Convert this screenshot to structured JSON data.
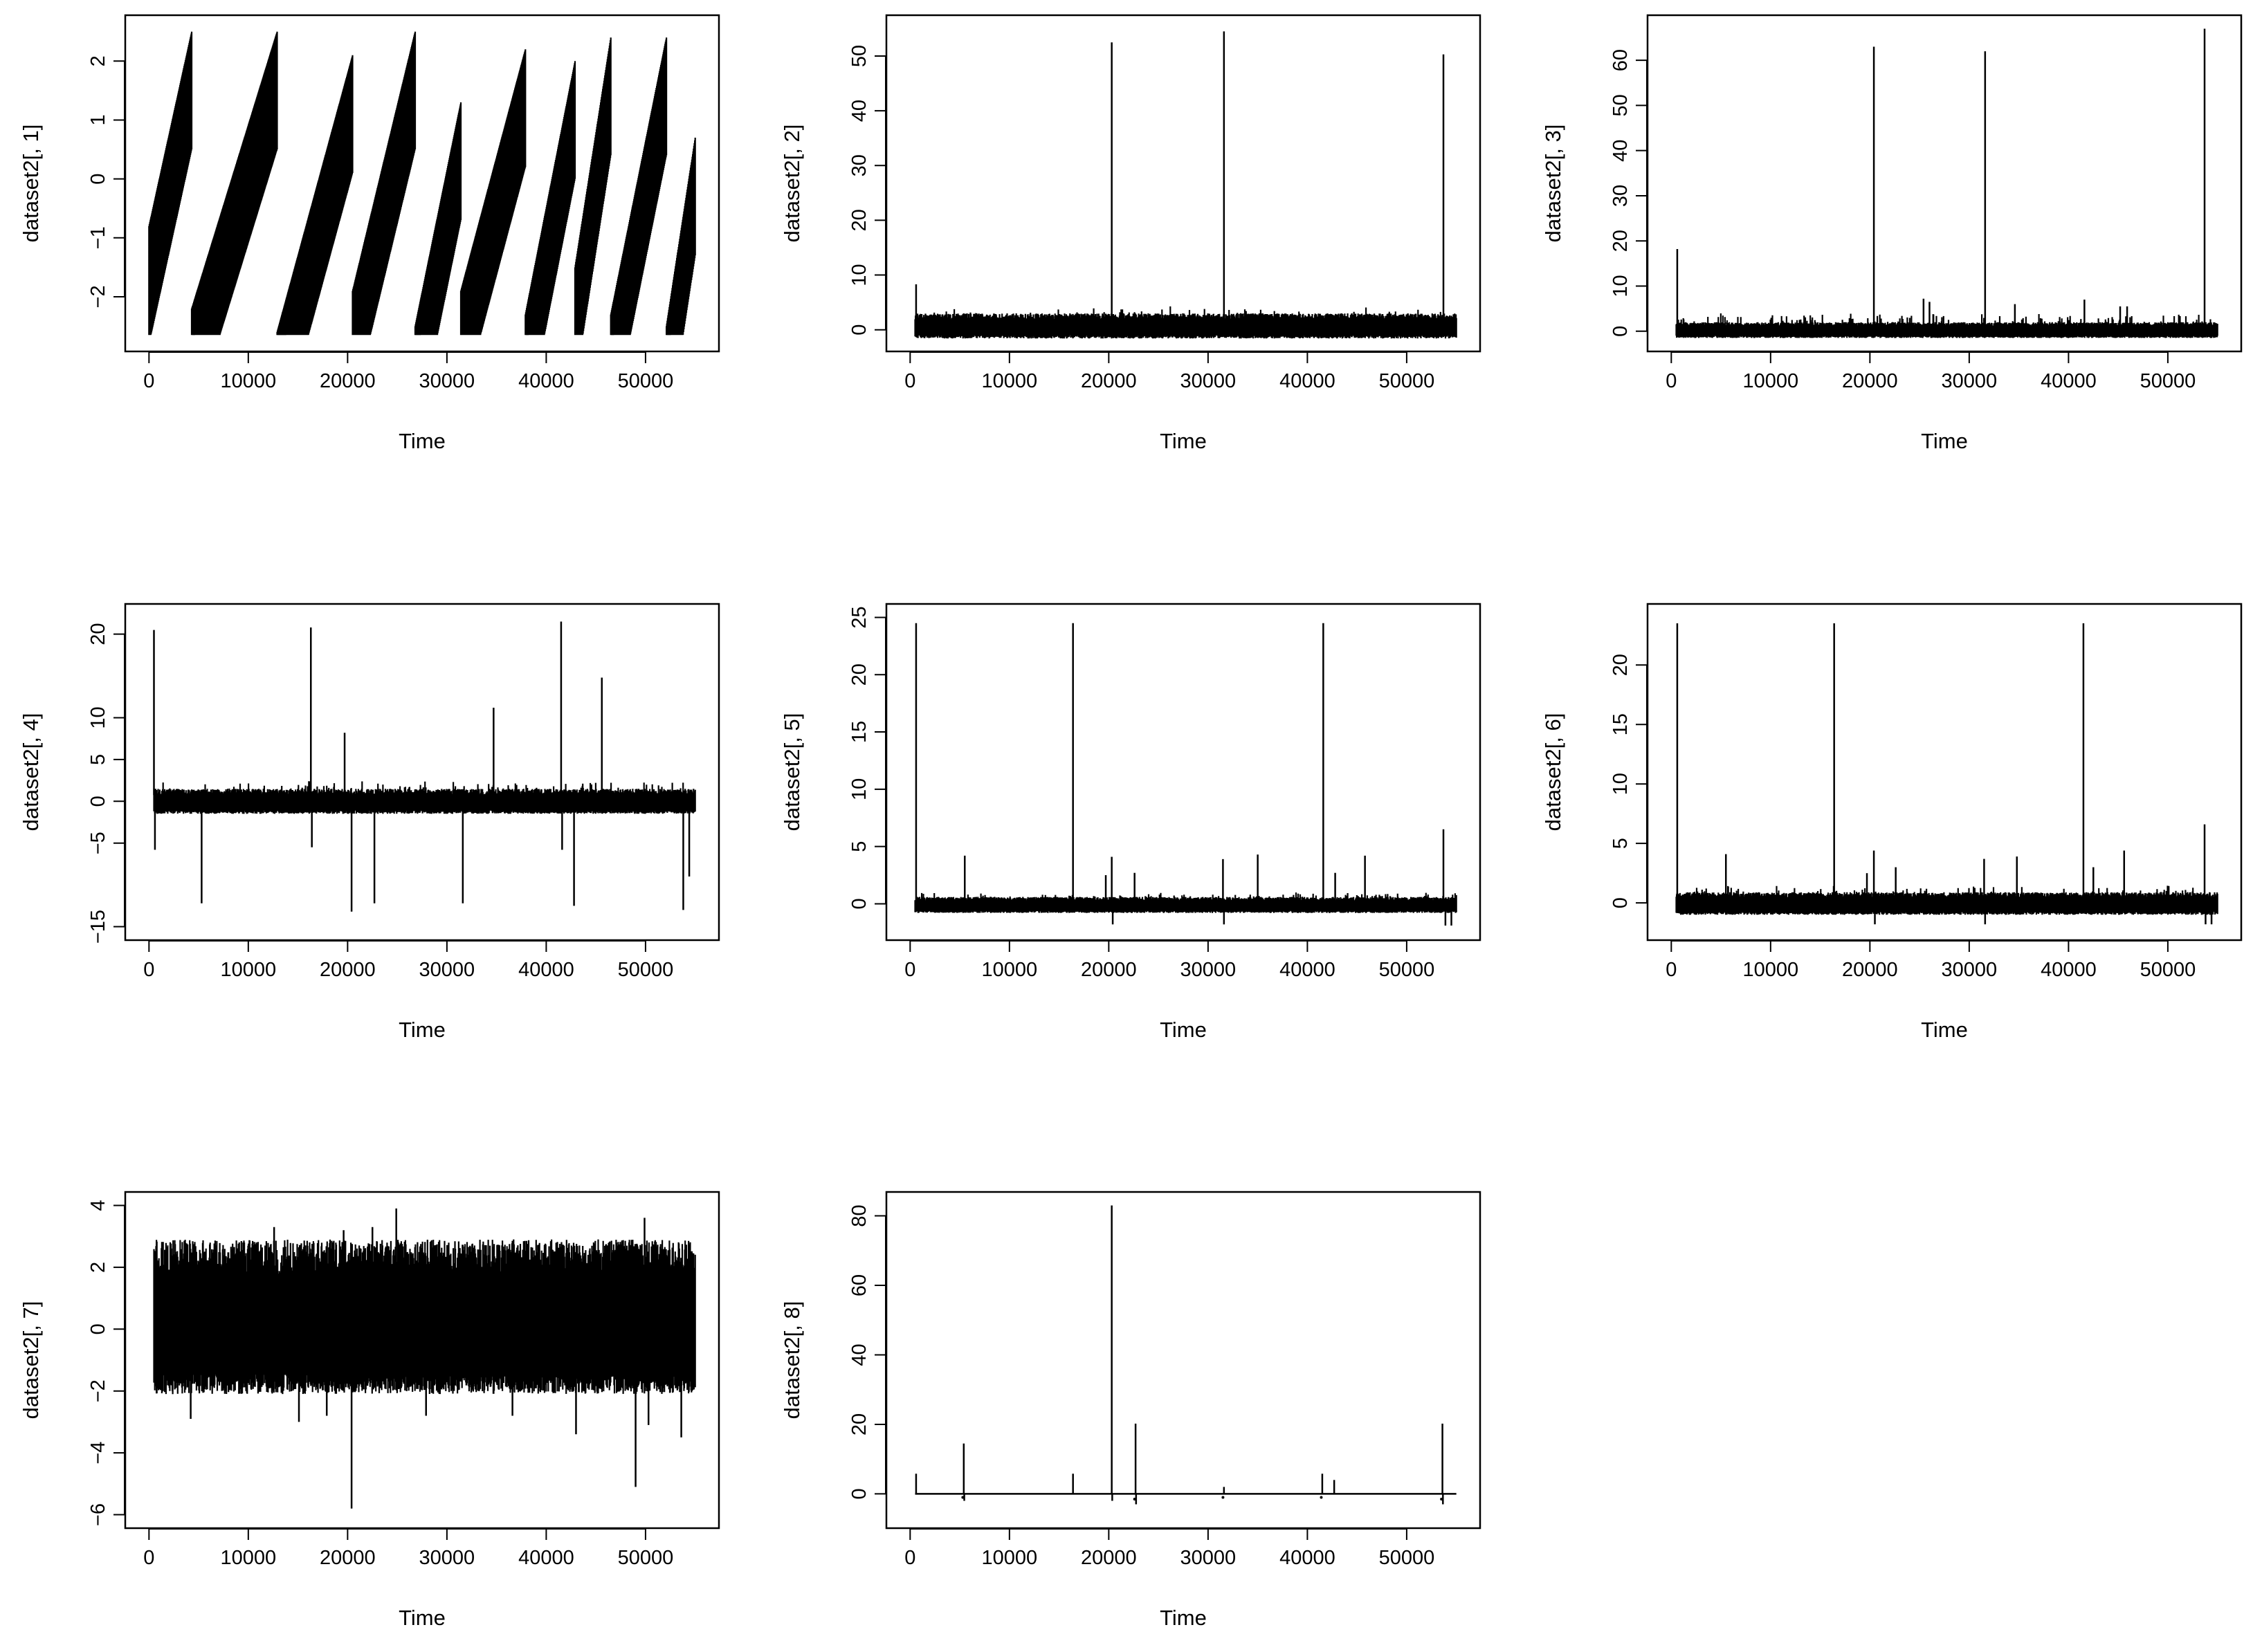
{
  "figure": {
    "rows": 3,
    "cols": 3,
    "panel_count": 8
  },
  "chart_data": [
    {
      "id": "p1",
      "type": "line",
      "title": "",
      "xlabel": "Time",
      "ylabel": "dataset2[, 1]",
      "xlim": [
        0,
        55000
      ],
      "ylim": [
        -2.7,
        2.55
      ],
      "xticks": [
        0,
        10000,
        20000,
        30000,
        40000,
        50000
      ],
      "xtick_labels": [
        "0",
        "10000",
        "20000",
        "30000",
        "40000",
        "50000"
      ],
      "yticks": [
        -2,
        -1,
        0,
        1,
        2
      ],
      "ytick_labels": [
        "−2",
        "−1",
        "0",
        "1",
        "2"
      ],
      "pattern": "sawtooth",
      "band_width": 2.0,
      "segments": [
        [
          0,
          4300,
          -0.8,
          2.5
        ],
        [
          4300,
          12900,
          -2.2,
          2.5
        ],
        [
          12900,
          20500,
          -2.6,
          2.1
        ],
        [
          20500,
          26800,
          -1.9,
          2.5
        ],
        [
          26800,
          31400,
          -2.5,
          1.3
        ],
        [
          31400,
          37900,
          -1.9,
          2.2
        ],
        [
          37900,
          42900,
          -2.3,
          2.0
        ],
        [
          42900,
          46500,
          -1.5,
          2.4
        ],
        [
          46500,
          52100,
          -2.3,
          2.4
        ],
        [
          52100,
          55000,
          -2.5,
          0.7
        ]
      ],
      "spikes": [],
      "lone_points": []
    },
    {
      "id": "p2",
      "type": "line",
      "title": "",
      "xlabel": "Time",
      "ylabel": "dataset2[, 2]",
      "xlim": [
        0,
        55000
      ],
      "ylim": [
        -1.5,
        55
      ],
      "xticks": [
        0,
        10000,
        20000,
        30000,
        40000,
        50000
      ],
      "xtick_labels": [
        "0",
        "10000",
        "20000",
        "30000",
        "40000",
        "50000"
      ],
      "yticks": [
        0,
        10,
        20,
        30,
        40,
        50
      ],
      "ytick_labels": [
        "0",
        "10",
        "20",
        "30",
        "40",
        "50"
      ],
      "pattern": "noise",
      "band": [
        -1.6,
        3.0
      ],
      "band_peaks": [
        2.5,
        4.5
      ],
      "spikes": [
        [
          600,
          8.3
        ],
        [
          20300,
          52.5
        ],
        [
          31600,
          54.5
        ],
        [
          53700,
          50.3
        ]
      ],
      "lone_points": []
    },
    {
      "id": "p3",
      "type": "line",
      "title": "",
      "xlabel": "Time",
      "ylabel": "dataset2[, 3]",
      "xlim": [
        0,
        55000
      ],
      "ylim": [
        -1.5,
        67
      ],
      "xticks": [
        0,
        10000,
        20000,
        30000,
        40000,
        50000
      ],
      "xtick_labels": [
        "0",
        "10000",
        "20000",
        "30000",
        "40000",
        "50000"
      ],
      "yticks": [
        0,
        10,
        20,
        30,
        40,
        50,
        60
      ],
      "ytick_labels": [
        "0",
        "10",
        "20",
        "30",
        "40",
        "50",
        "60"
      ],
      "pattern": "noise",
      "band": [
        -1.5,
        2.0
      ],
      "band_peaks": [
        2.5,
        4.0
      ],
      "spikes": [
        [
          600,
          18.2
        ],
        [
          20400,
          63.0
        ],
        [
          25400,
          7.2
        ],
        [
          26000,
          6.5
        ],
        [
          31600,
          62.0
        ],
        [
          34600,
          6.0
        ],
        [
          41600,
          7.0
        ],
        [
          45200,
          5.5
        ],
        [
          45900,
          5.5
        ],
        [
          53700,
          67.0
        ]
      ],
      "lone_points": []
    },
    {
      "id": "p4",
      "type": "line",
      "title": "",
      "xlabel": "Time",
      "ylabel": "dataset2[, 4]",
      "xlim": [
        0,
        55000
      ],
      "ylim": [
        -15,
        22
      ],
      "xticks": [
        0,
        10000,
        20000,
        30000,
        40000,
        50000
      ],
      "xtick_labels": [
        "0",
        "10000",
        "20000",
        "30000",
        "40000",
        "50000"
      ],
      "yticks": [
        -15,
        -5,
        0,
        5,
        10,
        20
      ],
      "ytick_labels": [
        "−15",
        "−5",
        "0",
        "5",
        "10",
        "20"
      ],
      "pattern": "noise",
      "band": [
        -1.5,
        1.5
      ],
      "band_peaks": [
        1.8,
        2.5
      ],
      "spikes": [
        [
          500,
          20.5
        ],
        [
          600,
          -5.8
        ],
        [
          5300,
          -12.2
        ],
        [
          16300,
          20.8
        ],
        [
          16400,
          -5.5
        ],
        [
          19700,
          8.2
        ],
        [
          20400,
          -13.2
        ],
        [
          22700,
          -12.2
        ],
        [
          31600,
          -12.2
        ],
        [
          34700,
          11.2
        ],
        [
          41500,
          21.5
        ],
        [
          41600,
          -5.8
        ],
        [
          42800,
          -12.5
        ],
        [
          45600,
          14.8
        ],
        [
          53800,
          -13.0
        ],
        [
          54400,
          -9.0
        ]
      ],
      "lone_points": []
    },
    {
      "id": "p5",
      "type": "line",
      "title": "",
      "xlabel": "Time",
      "ylabel": "dataset2[, 5]",
      "xlim": [
        0,
        55000
      ],
      "ylim": [
        -2,
        25
      ],
      "xticks": [
        0,
        10000,
        20000,
        30000,
        40000,
        50000
      ],
      "xtick_labels": [
        "0",
        "10000",
        "20000",
        "30000",
        "40000",
        "50000"
      ],
      "yticks": [
        0,
        5,
        10,
        15,
        20,
        25
      ],
      "ytick_labels": [
        "0",
        "5",
        "10",
        "15",
        "20",
        "25"
      ],
      "pattern": "noise",
      "band": [
        -0.8,
        0.6
      ],
      "band_peaks": [
        0.8,
        1.0
      ],
      "spikes": [
        [
          600,
          24.5
        ],
        [
          5500,
          4.2
        ],
        [
          16400,
          24.5
        ],
        [
          19700,
          2.5
        ],
        [
          20300,
          4.1
        ],
        [
          20400,
          -1.8
        ],
        [
          22600,
          2.7
        ],
        [
          31500,
          3.9
        ],
        [
          31600,
          -1.8
        ],
        [
          35000,
          4.3
        ],
        [
          41600,
          24.5
        ],
        [
          42800,
          2.7
        ],
        [
          45800,
          4.2
        ],
        [
          53700,
          6.5
        ],
        [
          53900,
          -1.9
        ],
        [
          54500,
          -1.9
        ]
      ],
      "lone_points": []
    },
    {
      "id": "p6",
      "type": "line",
      "title": "",
      "xlabel": "Time",
      "ylabel": "dataset2[, 6]",
      "xlim": [
        0,
        55000
      ],
      "ylim": [
        -2,
        24
      ],
      "xticks": [
        0,
        10000,
        20000,
        30000,
        40000,
        50000
      ],
      "xtick_labels": [
        "0",
        "10000",
        "20000",
        "30000",
        "40000",
        "50000"
      ],
      "yticks": [
        0,
        5,
        10,
        15,
        20
      ],
      "ytick_labels": [
        "0",
        "5",
        "10",
        "15",
        "20"
      ],
      "pattern": "noise",
      "band": [
        -1.0,
        0.9
      ],
      "band_peaks": [
        1.0,
        1.5
      ],
      "spikes": [
        [
          600,
          23.5
        ],
        [
          5500,
          4.1
        ],
        [
          16400,
          23.5
        ],
        [
          19700,
          2.5
        ],
        [
          20400,
          4.4
        ],
        [
          20500,
          -1.8
        ],
        [
          22600,
          3.0
        ],
        [
          31500,
          3.7
        ],
        [
          31600,
          -1.8
        ],
        [
          34800,
          3.9
        ],
        [
          41500,
          23.5
        ],
        [
          42500,
          3.0
        ],
        [
          45600,
          4.4
        ],
        [
          53700,
          6.6
        ],
        [
          53800,
          -1.8
        ],
        [
          54400,
          -1.8
        ]
      ],
      "lone_points": []
    },
    {
      "id": "p7",
      "type": "line",
      "title": "",
      "xlabel": "Time",
      "ylabel": "dataset2[, 7]",
      "xlim": [
        0,
        55000
      ],
      "ylim": [
        -6,
        4
      ],
      "xticks": [
        0,
        10000,
        20000,
        30000,
        40000,
        50000
      ],
      "xtick_labels": [
        "0",
        "10000",
        "20000",
        "30000",
        "40000",
        "50000"
      ],
      "yticks": [
        -6,
        -4,
        -2,
        0,
        2,
        4
      ],
      "ytick_labels": [
        "−6",
        "−4",
        "−2",
        "0",
        "2",
        "4"
      ],
      "pattern": "noise",
      "band": [
        -2.1,
        2.9
      ],
      "band_peaks": [
        2.9,
        2.9
      ],
      "spikes": [
        [
          4200,
          -2.9
        ],
        [
          12600,
          3.3
        ],
        [
          15100,
          -3.0
        ],
        [
          17900,
          -2.8
        ],
        [
          19600,
          3.2
        ],
        [
          20400,
          -5.8
        ],
        [
          22500,
          3.3
        ],
        [
          24900,
          3.9
        ],
        [
          27900,
          -2.8
        ],
        [
          36600,
          -2.8
        ],
        [
          43000,
          -3.4
        ],
        [
          49000,
          -5.1
        ],
        [
          49900,
          3.6
        ],
        [
          50300,
          -3.1
        ],
        [
          53600,
          -3.5
        ]
      ],
      "lone_points": []
    },
    {
      "id": "p8",
      "type": "line",
      "title": "",
      "xlabel": "Time",
      "ylabel": "dataset2[, 8]",
      "xlim": [
        0,
        55000
      ],
      "ylim": [
        -6,
        83
      ],
      "xticks": [
        0,
        10000,
        20000,
        30000,
        40000,
        50000
      ],
      "xtick_labels": [
        "0",
        "10000",
        "20000",
        "30000",
        "40000",
        "50000"
      ],
      "yticks": [
        0,
        20,
        40,
        60,
        80
      ],
      "ytick_labels": [
        "0",
        "20",
        "40",
        "60",
        "80"
      ],
      "pattern": "flat",
      "band": [
        0,
        0
      ],
      "spikes": [
        [
          600,
          5.8
        ],
        [
          5400,
          14.5
        ],
        [
          5450,
          -2.0
        ],
        [
          16400,
          5.8
        ],
        [
          20300,
          83.0
        ],
        [
          20350,
          -2.0
        ],
        [
          22700,
          20.2
        ],
        [
          22750,
          -3.0
        ],
        [
          31600,
          2.0
        ],
        [
          41500,
          5.8
        ],
        [
          42700,
          4.0
        ],
        [
          53600,
          20.2
        ],
        [
          53650,
          -3.0
        ]
      ],
      "lone_points": [
        [
          5300,
          -1.0
        ],
        [
          22600,
          -1.5
        ],
        [
          31500,
          -1.0
        ],
        [
          41400,
          -1.0
        ],
        [
          53500,
          -1.5
        ]
      ]
    }
  ]
}
